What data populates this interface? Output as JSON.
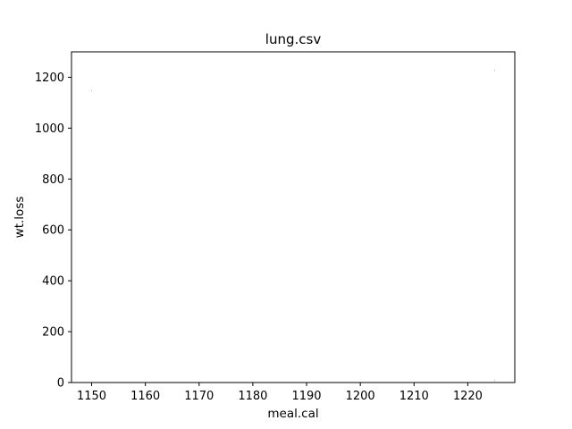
{
  "chart_data": {
    "type": "bar",
    "title": "lung.csv",
    "xlabel": "meal.cal",
    "ylabel": "wt.loss",
    "xlim": [
      1146.25,
      1228.75
    ],
    "ylim": [
      0,
      1300
    ],
    "xticks": [
      1150,
      1160,
      1170,
      1180,
      1190,
      1200,
      1210,
      1220
    ],
    "yticks": [
      0,
      200,
      400,
      600,
      800,
      1000,
      1200
    ],
    "grid": false,
    "legend": "none",
    "colors": {
      "bar": "#e6b58a",
      "axis": "#000000"
    },
    "bars": [
      {
        "x": 1150,
        "height": 1150,
        "bottom": 1145
      },
      {
        "x": 1225,
        "height": 1230,
        "bottom": 1225
      },
      {
        "x": 1225,
        "height": 10,
        "bottom": 5
      }
    ]
  }
}
